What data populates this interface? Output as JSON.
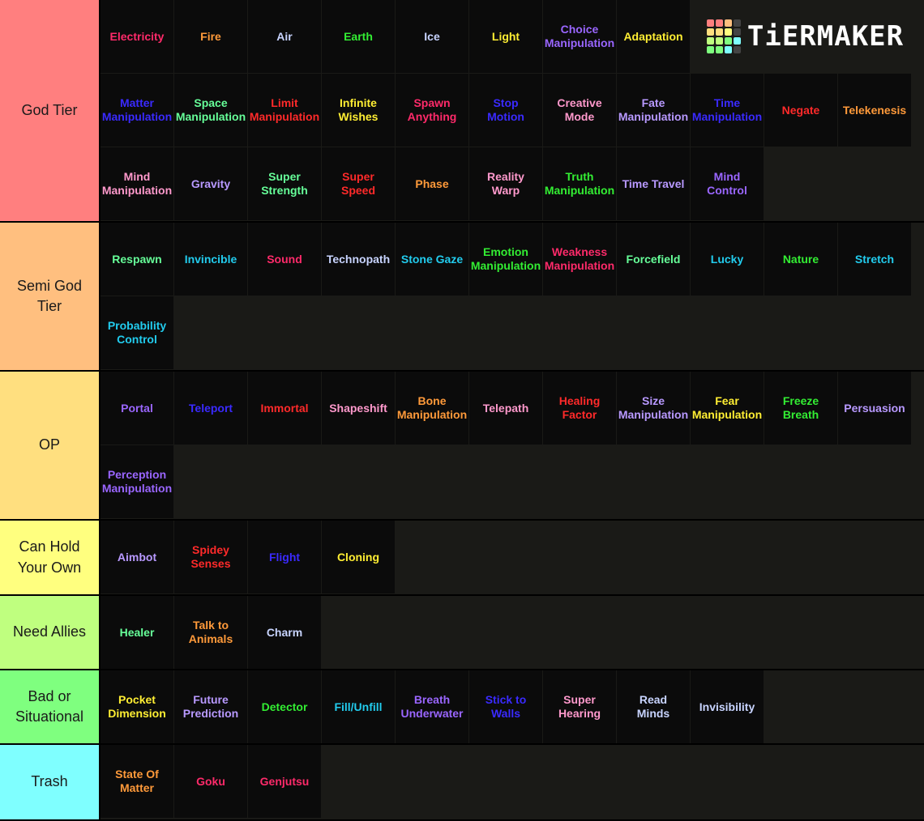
{
  "logo": {
    "text": "TiERMAKER",
    "icon": "tiermaker-grid-logo",
    "grid_colors": [
      "#ff7f7f",
      "#ff7f7f",
      "#ffbf7f",
      "#444444",
      "#ffdf7f",
      "#ffdf7f",
      "#ffff7f",
      "#444444",
      "#bfff7f",
      "#bfff7f",
      "#7fff7f",
      "#7fffff",
      "#7fff7f",
      "#7fff7f",
      "#7fffff",
      "#444444"
    ]
  },
  "tiers": [
    {
      "label": "God Tier",
      "color": "#ff7f7f",
      "items": [
        {
          "text": "Electricity",
          "color": "#ff2a6a"
        },
        {
          "text": "Fire",
          "color": "#ff9a3a"
        },
        {
          "text": "Air",
          "color": "#c8d4ff"
        },
        {
          "text": "Earth",
          "color": "#33ee33"
        },
        {
          "text": "Ice",
          "color": "#c8d4ff"
        },
        {
          "text": "Light",
          "color": "#ffee33"
        },
        {
          "text": "Choice\nManipulation",
          "color": "#9a66ff"
        },
        {
          "text": "Adaptation",
          "color": "#ffee33"
        },
        {
          "text": "Matter\nManipulation",
          "color": "#3a2aff"
        },
        {
          "text": "Space\nManipulation",
          "color": "#66ff99"
        },
        {
          "text": "Limit\nManipulation",
          "color": "#ff2a2a"
        },
        {
          "text": "Infinite\nWishes",
          "color": "#ffee33"
        },
        {
          "text": "Spawn\nAnything",
          "color": "#ff2a6a"
        },
        {
          "text": "Stop\nMotion",
          "color": "#3a2aff"
        },
        {
          "text": "Creative\nMode",
          "color": "#ff99cc"
        },
        {
          "text": "Fate\nManipulation",
          "color": "#b899ff"
        },
        {
          "text": "Time\nManipulation",
          "color": "#3a2aff"
        },
        {
          "text": "Negate",
          "color": "#ff2a2a"
        },
        {
          "text": "Telekenesis",
          "color": "#ff9a3a"
        },
        {
          "text": "Mind\nManipulation",
          "color": "#ff99cc"
        },
        {
          "text": "Gravity",
          "color": "#b899ff"
        },
        {
          "text": "Super\nStrength",
          "color": "#66ff99"
        },
        {
          "text": "Super\nSpeed",
          "color": "#ff2a2a"
        },
        {
          "text": "Phase",
          "color": "#ff9a3a"
        },
        {
          "text": "Reality\nWarp",
          "color": "#ff99cc"
        },
        {
          "text": "Truth\nManipulation",
          "color": "#33ee33"
        },
        {
          "text": "Time Travel",
          "color": "#b899ff"
        },
        {
          "text": "Mind\nControl",
          "color": "#9a66ff"
        }
      ]
    },
    {
      "label": "Semi God Tier",
      "color": "#ffbf7f",
      "items": [
        {
          "text": "Respawn",
          "color": "#66ff99"
        },
        {
          "text": "Invincible",
          "color": "#22ccee"
        },
        {
          "text": "Sound",
          "color": "#ff2a6a"
        },
        {
          "text": "Technopath",
          "color": "#c8d4ff"
        },
        {
          "text": "Stone Gaze",
          "color": "#22ccee"
        },
        {
          "text": "Emotion\nManipulation",
          "color": "#33ee33"
        },
        {
          "text": "Weakness\nManipulation",
          "color": "#ff2a6a"
        },
        {
          "text": "Forcefield",
          "color": "#66ff99"
        },
        {
          "text": "Lucky",
          "color": "#22ccee"
        },
        {
          "text": "Nature",
          "color": "#33ee33"
        },
        {
          "text": "Stretch",
          "color": "#22ccee"
        },
        {
          "text": "Probability\nControl",
          "color": "#22ccee"
        }
      ]
    },
    {
      "label": "OP",
      "color": "#ffdf7f",
      "items": [
        {
          "text": "Portal",
          "color": "#9a66ff"
        },
        {
          "text": "Teleport",
          "color": "#3a2aff"
        },
        {
          "text": "Immortal",
          "color": "#ff2a2a"
        },
        {
          "text": "Shapeshift",
          "color": "#ff99cc"
        },
        {
          "text": "Bone\nManipulation",
          "color": "#ff9a3a"
        },
        {
          "text": "Telepath",
          "color": "#ff99cc"
        },
        {
          "text": "Healing\nFactor",
          "color": "#ff2a2a"
        },
        {
          "text": "Size\nManipulation",
          "color": "#b899ff"
        },
        {
          "text": "Fear\nManipulation",
          "color": "#ffee33"
        },
        {
          "text": "Freeze\nBreath",
          "color": "#33ee33"
        },
        {
          "text": "Persuasion",
          "color": "#b899ff"
        },
        {
          "text": "Perception\nManipulation",
          "color": "#9a66ff"
        }
      ]
    },
    {
      "label": "Can Hold Your Own",
      "color": "#ffff7f",
      "items": [
        {
          "text": "Aimbot",
          "color": "#b899ff"
        },
        {
          "text": "Spidey\nSenses",
          "color": "#ff2a2a"
        },
        {
          "text": "Flight",
          "color": "#3a2aff"
        },
        {
          "text": "Cloning",
          "color": "#ffee33"
        }
      ]
    },
    {
      "label": "Need Allies",
      "color": "#bfff7f",
      "items": [
        {
          "text": "Healer",
          "color": "#66ff99"
        },
        {
          "text": "Talk to\nAnimals",
          "color": "#ff9a3a"
        },
        {
          "text": "Charm",
          "color": "#c8d4ff"
        }
      ]
    },
    {
      "label": "Bad or Situational",
      "color": "#7fff7f",
      "items": [
        {
          "text": "Pocket\nDimension",
          "color": "#ffee33"
        },
        {
          "text": "Future\nPrediction",
          "color": "#b899ff"
        },
        {
          "text": "Detector",
          "color": "#33ee33"
        },
        {
          "text": "Fill/Unfill",
          "color": "#22ccee"
        },
        {
          "text": "Breath\nUnderwater",
          "color": "#9a66ff"
        },
        {
          "text": "Stick to\nWalls",
          "color": "#3a2aff"
        },
        {
          "text": "Super\nHearing",
          "color": "#ff99cc"
        },
        {
          "text": "Read\nMinds",
          "color": "#c8d4ff"
        },
        {
          "text": "Invisibility",
          "color": "#c8d4ff"
        }
      ]
    },
    {
      "label": "Trash",
      "color": "#7fffff",
      "items": [
        {
          "text": "State Of\nMatter",
          "color": "#ff9a3a"
        },
        {
          "text": "Goku",
          "color": "#ff2a6a"
        },
        {
          "text": "Genjutsu",
          "color": "#ff2a6a"
        }
      ]
    }
  ]
}
